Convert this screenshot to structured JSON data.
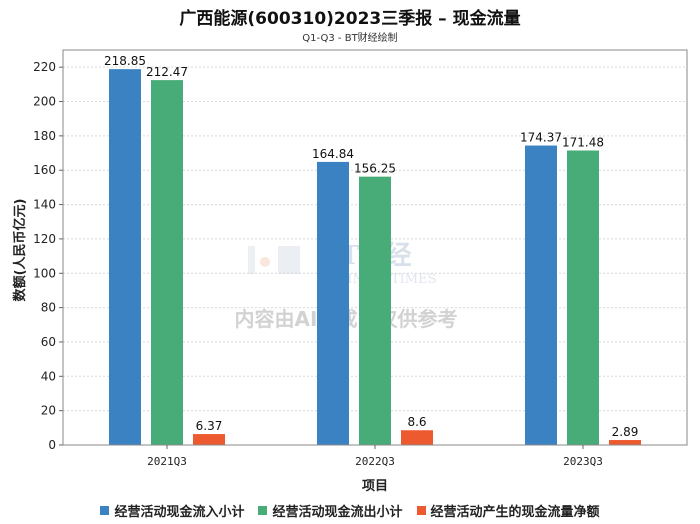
{
  "chart_data": {
    "type": "bar",
    "title": "广西能源(600310)2023三季报 – 现金流量",
    "subtitle": "Q1-Q3 - BT财经绘制",
    "xlabel": "项目",
    "ylabel": "数额(人民币亿元)",
    "categories": [
      "2021Q3",
      "2022Q3",
      "2023Q3"
    ],
    "ylim": [
      0,
      230
    ],
    "yticks": [
      0,
      20,
      40,
      60,
      80,
      100,
      120,
      140,
      160,
      180,
      200,
      220
    ],
    "grid": true,
    "legend_position": "bottom",
    "series": [
      {
        "name": "经营活动现金流入小计",
        "color": "#3a82c2",
        "values": [
          218.85,
          164.84,
          174.37
        ],
        "labels": [
          "218.85",
          "164.84",
          "174.37"
        ]
      },
      {
        "name": "经营活动现金流出小计",
        "color": "#47ac78",
        "values": [
          212.47,
          156.25,
          171.48
        ],
        "labels": [
          "212.47",
          "156.25",
          "171.48"
        ]
      },
      {
        "name": "经营活动产生的现金流量净额",
        "color": "#ee5a2f",
        "values": [
          6.37,
          8.6,
          2.89
        ],
        "labels": [
          "6.37",
          "8.6",
          "2.89"
        ]
      }
    ]
  },
  "watermark": {
    "brand": "BT财经",
    "sub": "BUSINESSTIMES",
    "notice": "内容由AI生成，仅供参考"
  }
}
